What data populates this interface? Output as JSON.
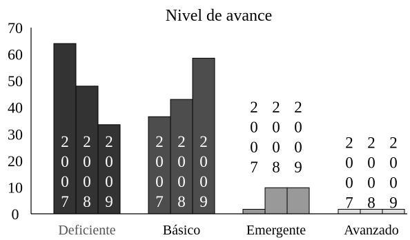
{
  "chart_data": {
    "type": "bar",
    "title": "Nivel de avance",
    "xlabel": "",
    "ylabel": "",
    "categories": [
      "Deficiente",
      "Básico",
      "Emergente",
      "Avanzado"
    ],
    "ylim": [
      0,
      70
    ],
    "yticks": [
      0,
      10,
      20,
      30,
      40,
      50,
      60,
      70
    ],
    "grid": false,
    "legend": "none",
    "series": [
      {
        "label": "2007",
        "values": [
          64,
          36.5,
          1.7,
          1.7
        ]
      },
      {
        "label": "2008",
        "values": [
          48,
          43,
          9.8,
          1.7
        ]
      },
      {
        "label": "2009",
        "values": [
          33.5,
          58.5,
          9.8,
          1.7
        ]
      }
    ],
    "category_colors": [
      "#333333",
      "#4d4d4d",
      "#999999",
      "#dddddd"
    ],
    "label_colors": [
      "#ffffff",
      "#ffffff",
      "#000000",
      "#000000"
    ]
  }
}
